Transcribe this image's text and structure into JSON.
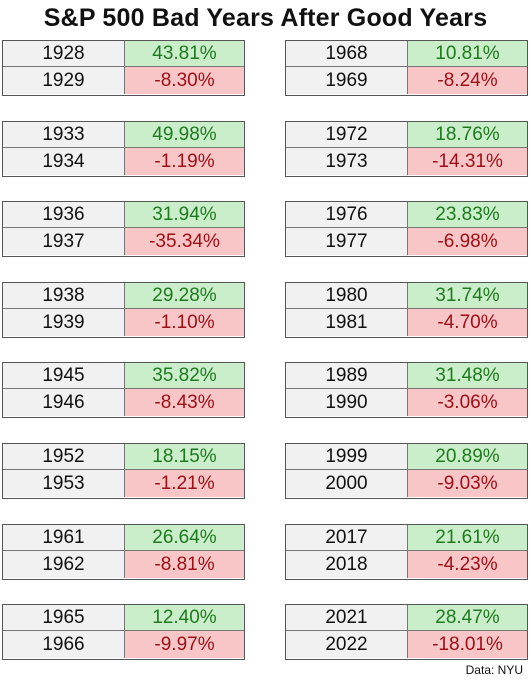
{
  "title": "S&P 500 Bad Years After Good Years",
  "source": "Data: NYU",
  "colors": {
    "good_fill": "#c9eec9",
    "good_text": "#1f7a1f",
    "bad_fill": "#f9c6c8",
    "bad_text": "#9c0f15",
    "year_fill": "#f1f1f1"
  },
  "chart_data": {
    "type": "table",
    "title": "S&P 500 Bad Years After Good Years",
    "columns": [
      [
        {
          "good_year": "1928",
          "good_return": "43.81%",
          "bad_year": "1929",
          "bad_return": "-8.30%"
        },
        {
          "good_year": "1933",
          "good_return": "49.98%",
          "bad_year": "1934",
          "bad_return": "-1.19%"
        },
        {
          "good_year": "1936",
          "good_return": "31.94%",
          "bad_year": "1937",
          "bad_return": "-35.34%"
        },
        {
          "good_year": "1938",
          "good_return": "29.28%",
          "bad_year": "1939",
          "bad_return": "-1.10%"
        },
        {
          "good_year": "1945",
          "good_return": "35.82%",
          "bad_year": "1946",
          "bad_return": "-8.43%"
        },
        {
          "good_year": "1952",
          "good_return": "18.15%",
          "bad_year": "1953",
          "bad_return": "-1.21%"
        },
        {
          "good_year": "1961",
          "good_return": "26.64%",
          "bad_year": "1962",
          "bad_return": "-8.81%"
        },
        {
          "good_year": "1965",
          "good_return": "12.40%",
          "bad_year": "1966",
          "bad_return": "-9.97%"
        }
      ],
      [
        {
          "good_year": "1968",
          "good_return": "10.81%",
          "bad_year": "1969",
          "bad_return": "-8.24%"
        },
        {
          "good_year": "1972",
          "good_return": "18.76%",
          "bad_year": "1973",
          "bad_return": "-14.31%"
        },
        {
          "good_year": "1976",
          "good_return": "23.83%",
          "bad_year": "1977",
          "bad_return": "-6.98%"
        },
        {
          "good_year": "1980",
          "good_return": "31.74%",
          "bad_year": "1981",
          "bad_return": "-4.70%"
        },
        {
          "good_year": "1989",
          "good_return": "31.48%",
          "bad_year": "1990",
          "bad_return": "-3.06%"
        },
        {
          "good_year": "1999",
          "good_return": "20.89%",
          "bad_year": "2000",
          "bad_return": "-9.03%"
        },
        {
          "good_year": "2017",
          "good_return": "21.61%",
          "bad_year": "2018",
          "bad_return": "-4.23%"
        },
        {
          "good_year": "2021",
          "good_return": "28.47%",
          "bad_year": "2022",
          "bad_return": "-18.01%"
        }
      ]
    ]
  }
}
